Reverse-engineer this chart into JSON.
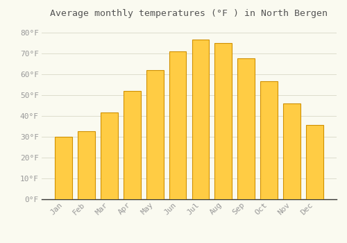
{
  "title": "Average monthly temperatures (°F ) in North Bergen",
  "months": [
    "Jan",
    "Feb",
    "Mar",
    "Apr",
    "May",
    "Jun",
    "Jul",
    "Aug",
    "Sep",
    "Oct",
    "Nov",
    "Dec"
  ],
  "temperatures": [
    30,
    32.5,
    41.5,
    52,
    62,
    71,
    76.5,
    75,
    67.5,
    56.5,
    46,
    35.5
  ],
  "bar_color_top": "#FFCC44",
  "bar_color_bottom": "#F0A000",
  "bar_edge_color": "#D09000",
  "background_color": "#FAFAF0",
  "grid_color": "#DDDDCC",
  "title_fontsize": 9.5,
  "tick_label_fontsize": 8,
  "ylim": [
    0,
    85
  ],
  "yticks": [
    0,
    10,
    20,
    30,
    40,
    50,
    60,
    70,
    80
  ],
  "ytick_labels": [
    "0°F",
    "10°F",
    "20°F",
    "30°F",
    "40°F",
    "50°F",
    "60°F",
    "70°F",
    "80°F"
  ],
  "tick_color": "#999999",
  "spine_color": "#333333",
  "title_color": "#555555"
}
